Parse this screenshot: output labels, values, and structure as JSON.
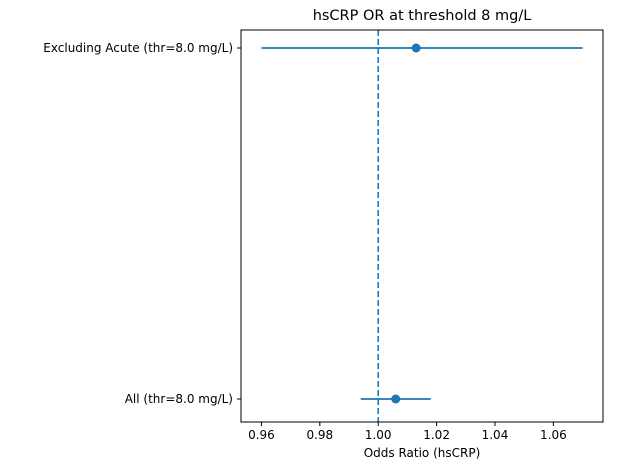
{
  "chart_data": {
    "type": "scatter",
    "subtype": "forest-plot",
    "title": "hsCRP OR at threshold 8 mg/L",
    "xlabel": "Odds Ratio (hsCRP)",
    "ylabel": "",
    "xlim": [
      0.953,
      1.077
    ],
    "xticks": [
      0.96,
      0.98,
      1.0,
      1.02,
      1.04,
      1.06
    ],
    "xtick_labels": [
      "0.96",
      "0.98",
      "1.00",
      "1.02",
      "1.04",
      "1.06"
    ],
    "reference_line": {
      "x": 1.0,
      "style": "dashed"
    },
    "categories": [
      "Excluding Acute (thr=8.0 mg/L)",
      "All (thr=8.0 mg/L)"
    ],
    "points": [
      {
        "label": "Excluding Acute (thr=8.0 mg/L)",
        "or": 1.013,
        "ci_low": 0.96,
        "ci_high": 1.07
      },
      {
        "label": "All (thr=8.0 mg/L)",
        "or": 1.006,
        "ci_low": 0.994,
        "ci_high": 1.018
      }
    ],
    "grid": false,
    "color": "#1f77b4"
  }
}
